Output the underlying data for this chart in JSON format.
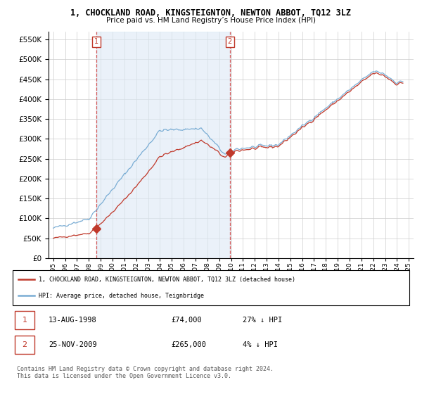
{
  "title": "1, CHOCKLAND ROAD, KINGSTEIGNTON, NEWTON ABBOT, TQ12 3LZ",
  "subtitle": "Price paid vs. HM Land Registry’s House Price Index (HPI)",
  "ytick_values": [
    0,
    50000,
    100000,
    150000,
    200000,
    250000,
    300000,
    350000,
    400000,
    450000,
    500000,
    550000
  ],
  "ylim": [
    0,
    570000
  ],
  "xlim": [
    1994.6,
    2025.4
  ],
  "x_years": [
    1995,
    1996,
    1997,
    1998,
    1999,
    2000,
    2001,
    2002,
    2003,
    2004,
    2005,
    2006,
    2007,
    2008,
    2009,
    2010,
    2011,
    2012,
    2013,
    2014,
    2015,
    2016,
    2017,
    2018,
    2019,
    2020,
    2021,
    2022,
    2023,
    2024,
    2025
  ],
  "hpi_color": "#7aadd4",
  "hpi_fill_color": "#dce9f5",
  "price_color": "#c0392b",
  "marker_color": "#c0392b",
  "dashed_line_color": "#cc3333",
  "bg_color": "#ffffff",
  "grid_color": "#cccccc",
  "legend_label_red": "1, CHOCKLAND ROAD, KINGSTEIGNTON, NEWTON ABBOT, TQ12 3LZ (detached house)",
  "legend_label_blue": "HPI: Average price, detached house, Teignbridge",
  "sale1_x": 1998.62,
  "sale1_y": 74000,
  "sale2_x": 2009.9,
  "sale2_y": 265000,
  "footnote": "Contains HM Land Registry data © Crown copyright and database right 2024.\nThis data is licensed under the Open Government Licence v3.0."
}
